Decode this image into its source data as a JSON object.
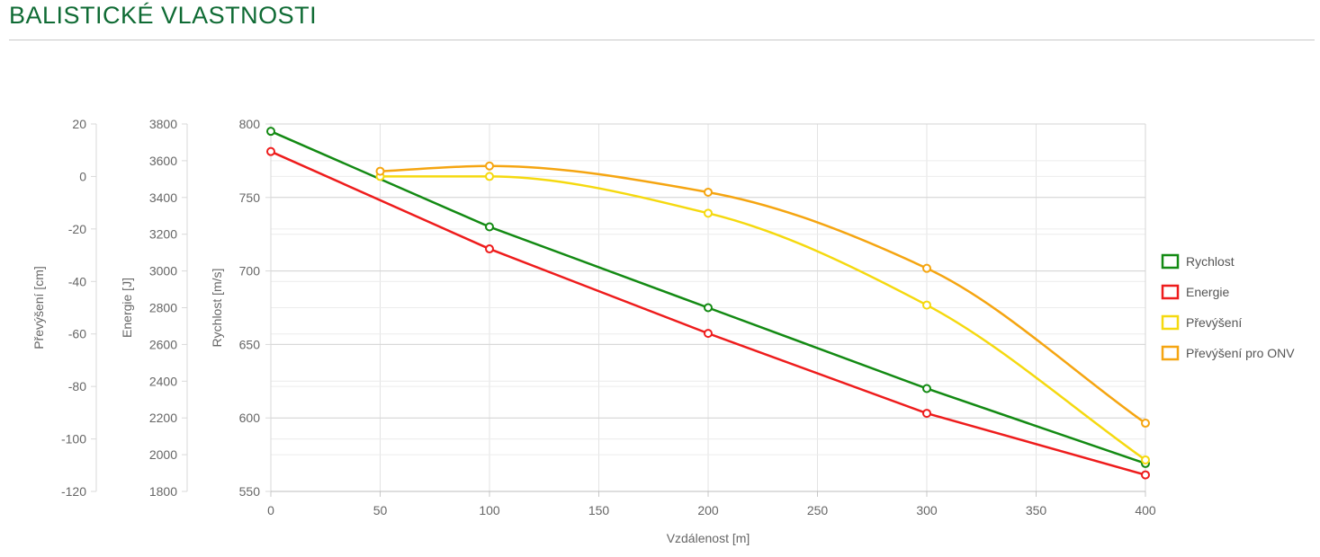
{
  "page": {
    "title": "BALISTICKÉ VLASTNOSTI"
  },
  "chart_data": {
    "type": "line",
    "x_axis": {
      "label": "Vzdálenost [m]",
      "range": [
        0,
        400
      ],
      "ticks": [
        0,
        50,
        100,
        150,
        200,
        250,
        300,
        350,
        400
      ]
    },
    "y_axes": [
      {
        "id": "drop",
        "label": "Převýšení [cm]",
        "range": [
          -120,
          20
        ],
        "ticks": [
          20,
          0,
          -20,
          -40,
          -60,
          -80,
          -100,
          -120
        ]
      },
      {
        "id": "energy",
        "label": "Energie [J]",
        "range": [
          1800,
          3800
        ],
        "ticks": [
          3800,
          3600,
          3400,
          3200,
          3000,
          2800,
          2600,
          2400,
          2200,
          2000,
          1800
        ]
      },
      {
        "id": "velocity",
        "label": "Rychlost [m/s]",
        "range": [
          550,
          800
        ],
        "ticks": [
          800,
          750,
          700,
          650,
          600,
          550
        ]
      }
    ],
    "series": [
      {
        "name": "Rychlost",
        "axis": "velocity",
        "color": "#138a13",
        "smooth": false,
        "x": [
          0,
          100,
          200,
          300,
          400
        ],
        "y": [
          795,
          730,
          675,
          620,
          569
        ]
      },
      {
        "name": "Energie",
        "axis": "energy",
        "color": "#ee1c1c",
        "smooth": false,
        "x": [
          0,
          100,
          200,
          300,
          400
        ],
        "y": [
          3650,
          3120,
          2660,
          2225,
          1890
        ]
      },
      {
        "name": "Převýšení",
        "axis": "drop",
        "color": "#f5d90f",
        "smooth": true,
        "x": [
          50,
          100,
          200,
          300,
          400
        ],
        "y": [
          0,
          0,
          -14,
          -49,
          -108
        ]
      },
      {
        "name": "Převýšení pro ONV",
        "axis": "drop",
        "color": "#f5a511",
        "smooth": true,
        "x": [
          50,
          100,
          200,
          300,
          400
        ],
        "y": [
          2,
          4,
          -6,
          -35,
          -94
        ]
      }
    ],
    "grid": true,
    "legend_position": "right"
  }
}
